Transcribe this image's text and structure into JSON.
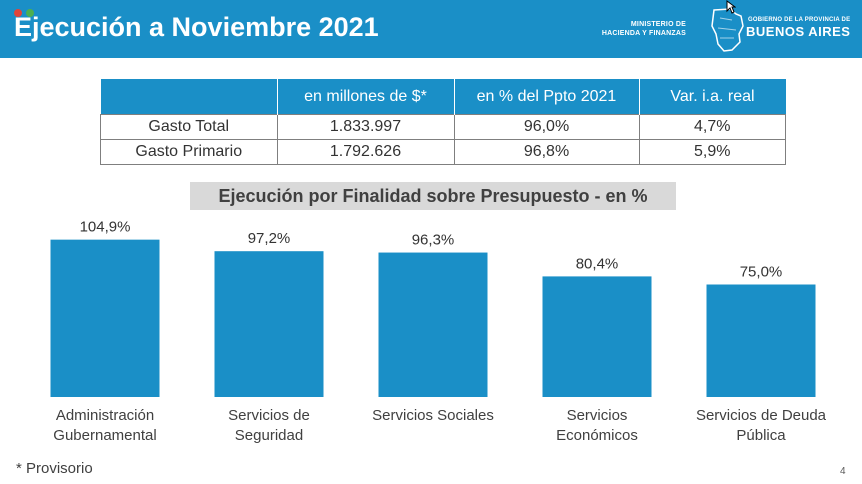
{
  "colors": {
    "accent": "#1a8fc7",
    "title_bg": "#d9d9d9"
  },
  "header": {
    "title": "Ejecución a Noviembre 2021",
    "ministry_line1": "MINISTERIO DE",
    "ministry_line2": "HACIENDA Y FINANZAS",
    "gov_text": "GOBIERNO DE LA PROVINCIA DE",
    "brand": "BUENOS AIRES"
  },
  "summary_table": {
    "headers": [
      "",
      "en millones de $*",
      "en % del Ppto 2021",
      "Var. i.a. real"
    ],
    "rows": [
      [
        "Gasto Total",
        "1.833.997",
        "96,0%",
        "4,7%"
      ],
      [
        "Gasto Primario",
        "1.792.626",
        "96,8%",
        "5,9%"
      ]
    ]
  },
  "chart_data": {
    "type": "bar",
    "title": "Ejecución por Finalidad sobre Presupuesto - en %",
    "categories": [
      [
        "Administración",
        "Gubernamental"
      ],
      [
        "Servicios de",
        "Seguridad"
      ],
      [
        "Servicios Sociales"
      ],
      [
        "Servicios",
        "Económicos"
      ],
      [
        "Servicios de Deuda",
        "Pública"
      ]
    ],
    "values": [
      104.9,
      97.2,
      96.3,
      80.4,
      75.0
    ],
    "value_labels": [
      "104,9%",
      "97,2%",
      "96,3%",
      "80,4%",
      "75,0%"
    ],
    "xlabel": "",
    "ylabel": "",
    "grid": false
  },
  "footer": {
    "note": "* Provisorio",
    "page": "4"
  }
}
